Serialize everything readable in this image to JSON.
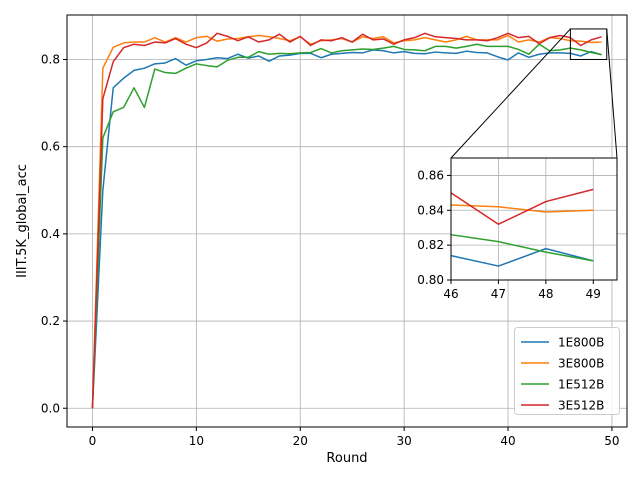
{
  "chart_data": {
    "type": "line",
    "title": "",
    "xlabel": "Round",
    "ylabel": "IIIT.5K_global_acc",
    "xlim": [
      -2.45,
      51.45
    ],
    "ylim": [
      -0.043,
      0.902
    ],
    "xticks": [
      0,
      10,
      20,
      30,
      40,
      50
    ],
    "yticks": [
      0.0,
      0.2,
      0.4,
      0.6,
      0.8
    ],
    "grid": true,
    "legend_position": "lower-right",
    "series": [
      {
        "name": "1E800B",
        "color": "#1f77b4",
        "values": [
          0.0,
          0.5,
          0.735,
          0.757,
          0.775,
          0.78,
          0.79,
          0.792,
          0.802,
          0.787,
          0.797,
          0.8,
          0.804,
          0.802,
          0.812,
          0.803,
          0.808,
          0.796,
          0.808,
          0.81,
          0.814,
          0.814,
          0.804,
          0.812,
          0.814,
          0.816,
          0.815,
          0.822,
          0.82,
          0.815,
          0.818,
          0.814,
          0.813,
          0.817,
          0.815,
          0.814,
          0.819,
          0.816,
          0.815,
          0.806,
          0.799,
          0.815,
          0.805,
          0.812,
          0.815,
          0.815,
          0.814,
          0.808,
          0.818,
          0.811
        ]
      },
      {
        "name": "3E800B",
        "color": "#ff7f0e",
        "values": [
          0.0,
          0.78,
          0.828,
          0.838,
          0.84,
          0.84,
          0.85,
          0.84,
          0.85,
          0.84,
          0.85,
          0.853,
          0.842,
          0.847,
          0.848,
          0.852,
          0.855,
          0.852,
          0.848,
          0.843,
          0.852,
          0.835,
          0.843,
          0.845,
          0.848,
          0.84,
          0.852,
          0.848,
          0.852,
          0.838,
          0.843,
          0.845,
          0.85,
          0.845,
          0.84,
          0.845,
          0.853,
          0.845,
          0.845,
          0.845,
          0.855,
          0.84,
          0.845,
          0.84,
          0.85,
          0.848,
          0.843,
          0.842,
          0.839,
          0.84
        ]
      },
      {
        "name": "1E512B",
        "color": "#2ca02c",
        "values": [
          0.0,
          0.62,
          0.68,
          0.69,
          0.735,
          0.69,
          0.778,
          0.77,
          0.768,
          0.78,
          0.79,
          0.786,
          0.783,
          0.798,
          0.805,
          0.805,
          0.818,
          0.812,
          0.814,
          0.813,
          0.815,
          0.816,
          0.825,
          0.815,
          0.82,
          0.822,
          0.824,
          0.823,
          0.826,
          0.83,
          0.823,
          0.822,
          0.82,
          0.83,
          0.83,
          0.826,
          0.83,
          0.835,
          0.83,
          0.83,
          0.83,
          0.823,
          0.812,
          0.835,
          0.82,
          0.822,
          0.826,
          0.822,
          0.816,
          0.811
        ]
      },
      {
        "name": "3E512B",
        "color": "#d62728",
        "values": [
          0.0,
          0.71,
          0.795,
          0.827,
          0.835,
          0.832,
          0.84,
          0.838,
          0.848,
          0.835,
          0.827,
          0.838,
          0.86,
          0.853,
          0.843,
          0.852,
          0.84,
          0.845,
          0.858,
          0.84,
          0.853,
          0.832,
          0.845,
          0.843,
          0.85,
          0.84,
          0.858,
          0.845,
          0.847,
          0.835,
          0.845,
          0.85,
          0.86,
          0.852,
          0.85,
          0.848,
          0.845,
          0.845,
          0.843,
          0.85,
          0.86,
          0.85,
          0.853,
          0.836,
          0.85,
          0.855,
          0.85,
          0.832,
          0.845,
          0.852
        ]
      }
    ],
    "inset": {
      "xlim": [
        46,
        49.5
      ],
      "ylim": [
        0.8,
        0.87
      ],
      "xticks": [
        46,
        47,
        48,
        49
      ],
      "yticks": [
        0.8,
        0.82,
        0.84,
        0.86
      ],
      "grid": true,
      "x_start": 46
    }
  }
}
